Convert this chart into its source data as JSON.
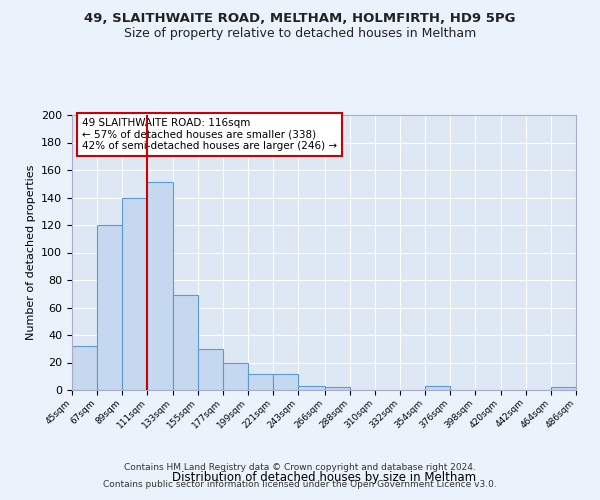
{
  "title": "49, SLAITHWAITE ROAD, MELTHAM, HOLMFIRTH, HD9 5PG",
  "subtitle": "Size of property relative to detached houses in Meltham",
  "xlabel": "Distribution of detached houses by size in Meltham",
  "ylabel": "Number of detached properties",
  "bar_color": "#c5d8f0",
  "bar_edge_color": "#5b9bd5",
  "background_color": "#dde8f4",
  "fig_background_color": "#eaf2fb",
  "grid_color": "#ffffff",
  "bins": [
    45,
    67,
    89,
    111,
    133,
    155,
    177,
    199,
    221,
    243,
    266,
    288,
    310,
    332,
    354,
    376,
    398,
    420,
    442,
    464,
    486
  ],
  "bin_labels": [
    "45sqm",
    "67sqm",
    "89sqm",
    "111sqm",
    "133sqm",
    "155sqm",
    "177sqm",
    "199sqm",
    "221sqm",
    "243sqm",
    "266sqm",
    "288sqm",
    "310sqm",
    "332sqm",
    "354sqm",
    "376sqm",
    "398sqm",
    "420sqm",
    "442sqm",
    "464sqm",
    "486sqm"
  ],
  "values": [
    32,
    120,
    140,
    151,
    69,
    30,
    20,
    12,
    12,
    3,
    2,
    0,
    0,
    0,
    3,
    0,
    0,
    0,
    0,
    2
  ],
  "ylim": [
    0,
    200
  ],
  "yticks": [
    0,
    20,
    40,
    60,
    80,
    100,
    120,
    140,
    160,
    180,
    200
  ],
  "vline_x": 111,
  "vline_color": "#cc0000",
  "annotation_text": "49 SLAITHWAITE ROAD: 116sqm\n← 57% of detached houses are smaller (338)\n42% of semi-detached houses are larger (246) →",
  "annotation_box_edge_color": "#cc0000",
  "annotation_box_face_color": "#ffffff",
  "footer_line1": "Contains HM Land Registry data © Crown copyright and database right 2024.",
  "footer_line2": "Contains public sector information licensed under the Open Government Licence v3.0."
}
